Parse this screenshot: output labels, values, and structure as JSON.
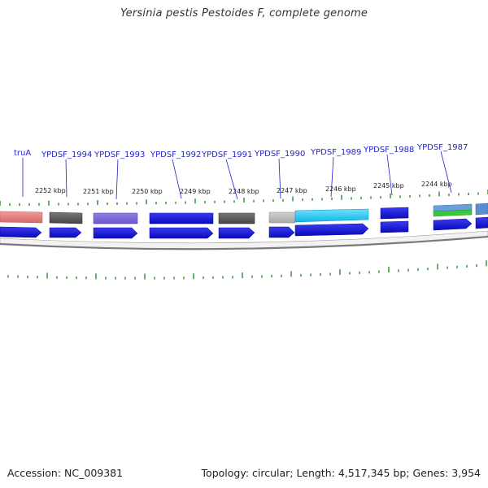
{
  "title": "Yersinia pestis Pestoides F, complete genome",
  "footer": {
    "accession_label": "Accession:",
    "accession": "NC_009381",
    "topology_label": "Topology:",
    "topology": "circular",
    "length_label": "Length:",
    "length": "4,517,345 bp",
    "genes_label": "Genes:",
    "genes": "3,954"
  },
  "kbp_labels": [
    "2252 kbp",
    "2251 kbp",
    "2250 kbp",
    "2249 kbp",
    "2248 kbp",
    "2247 kbp",
    "2246 kbp",
    "2245 kbp",
    "2244 kbp"
  ],
  "genes": [
    {
      "name": "truA",
      "color": "#e07c7c"
    },
    {
      "name": "YPDSF_1994",
      "color": "#555555"
    },
    {
      "name": "YPDSF_1993",
      "color": "#7b68d8"
    },
    {
      "name": "YPDSF_1992",
      "color": "#1010e0"
    },
    {
      "name": "YPDSF_1991",
      "color": "#555555"
    },
    {
      "name": "YPDSF_1990",
      "color": "#bdbdbd"
    },
    {
      "name": "YPDSF_1989",
      "color": "#22c8f0"
    },
    {
      "name": "YPDSF_1988",
      "color": "#1010e0"
    },
    {
      "name": "YPDSF_1987",
      "color": "#66a8d8"
    }
  ],
  "colors": {
    "gene_label": "#1f1fd0",
    "tick": "#2c8a2c",
    "backbone": "#8a8a8a",
    "cds": "#1010e0"
  }
}
